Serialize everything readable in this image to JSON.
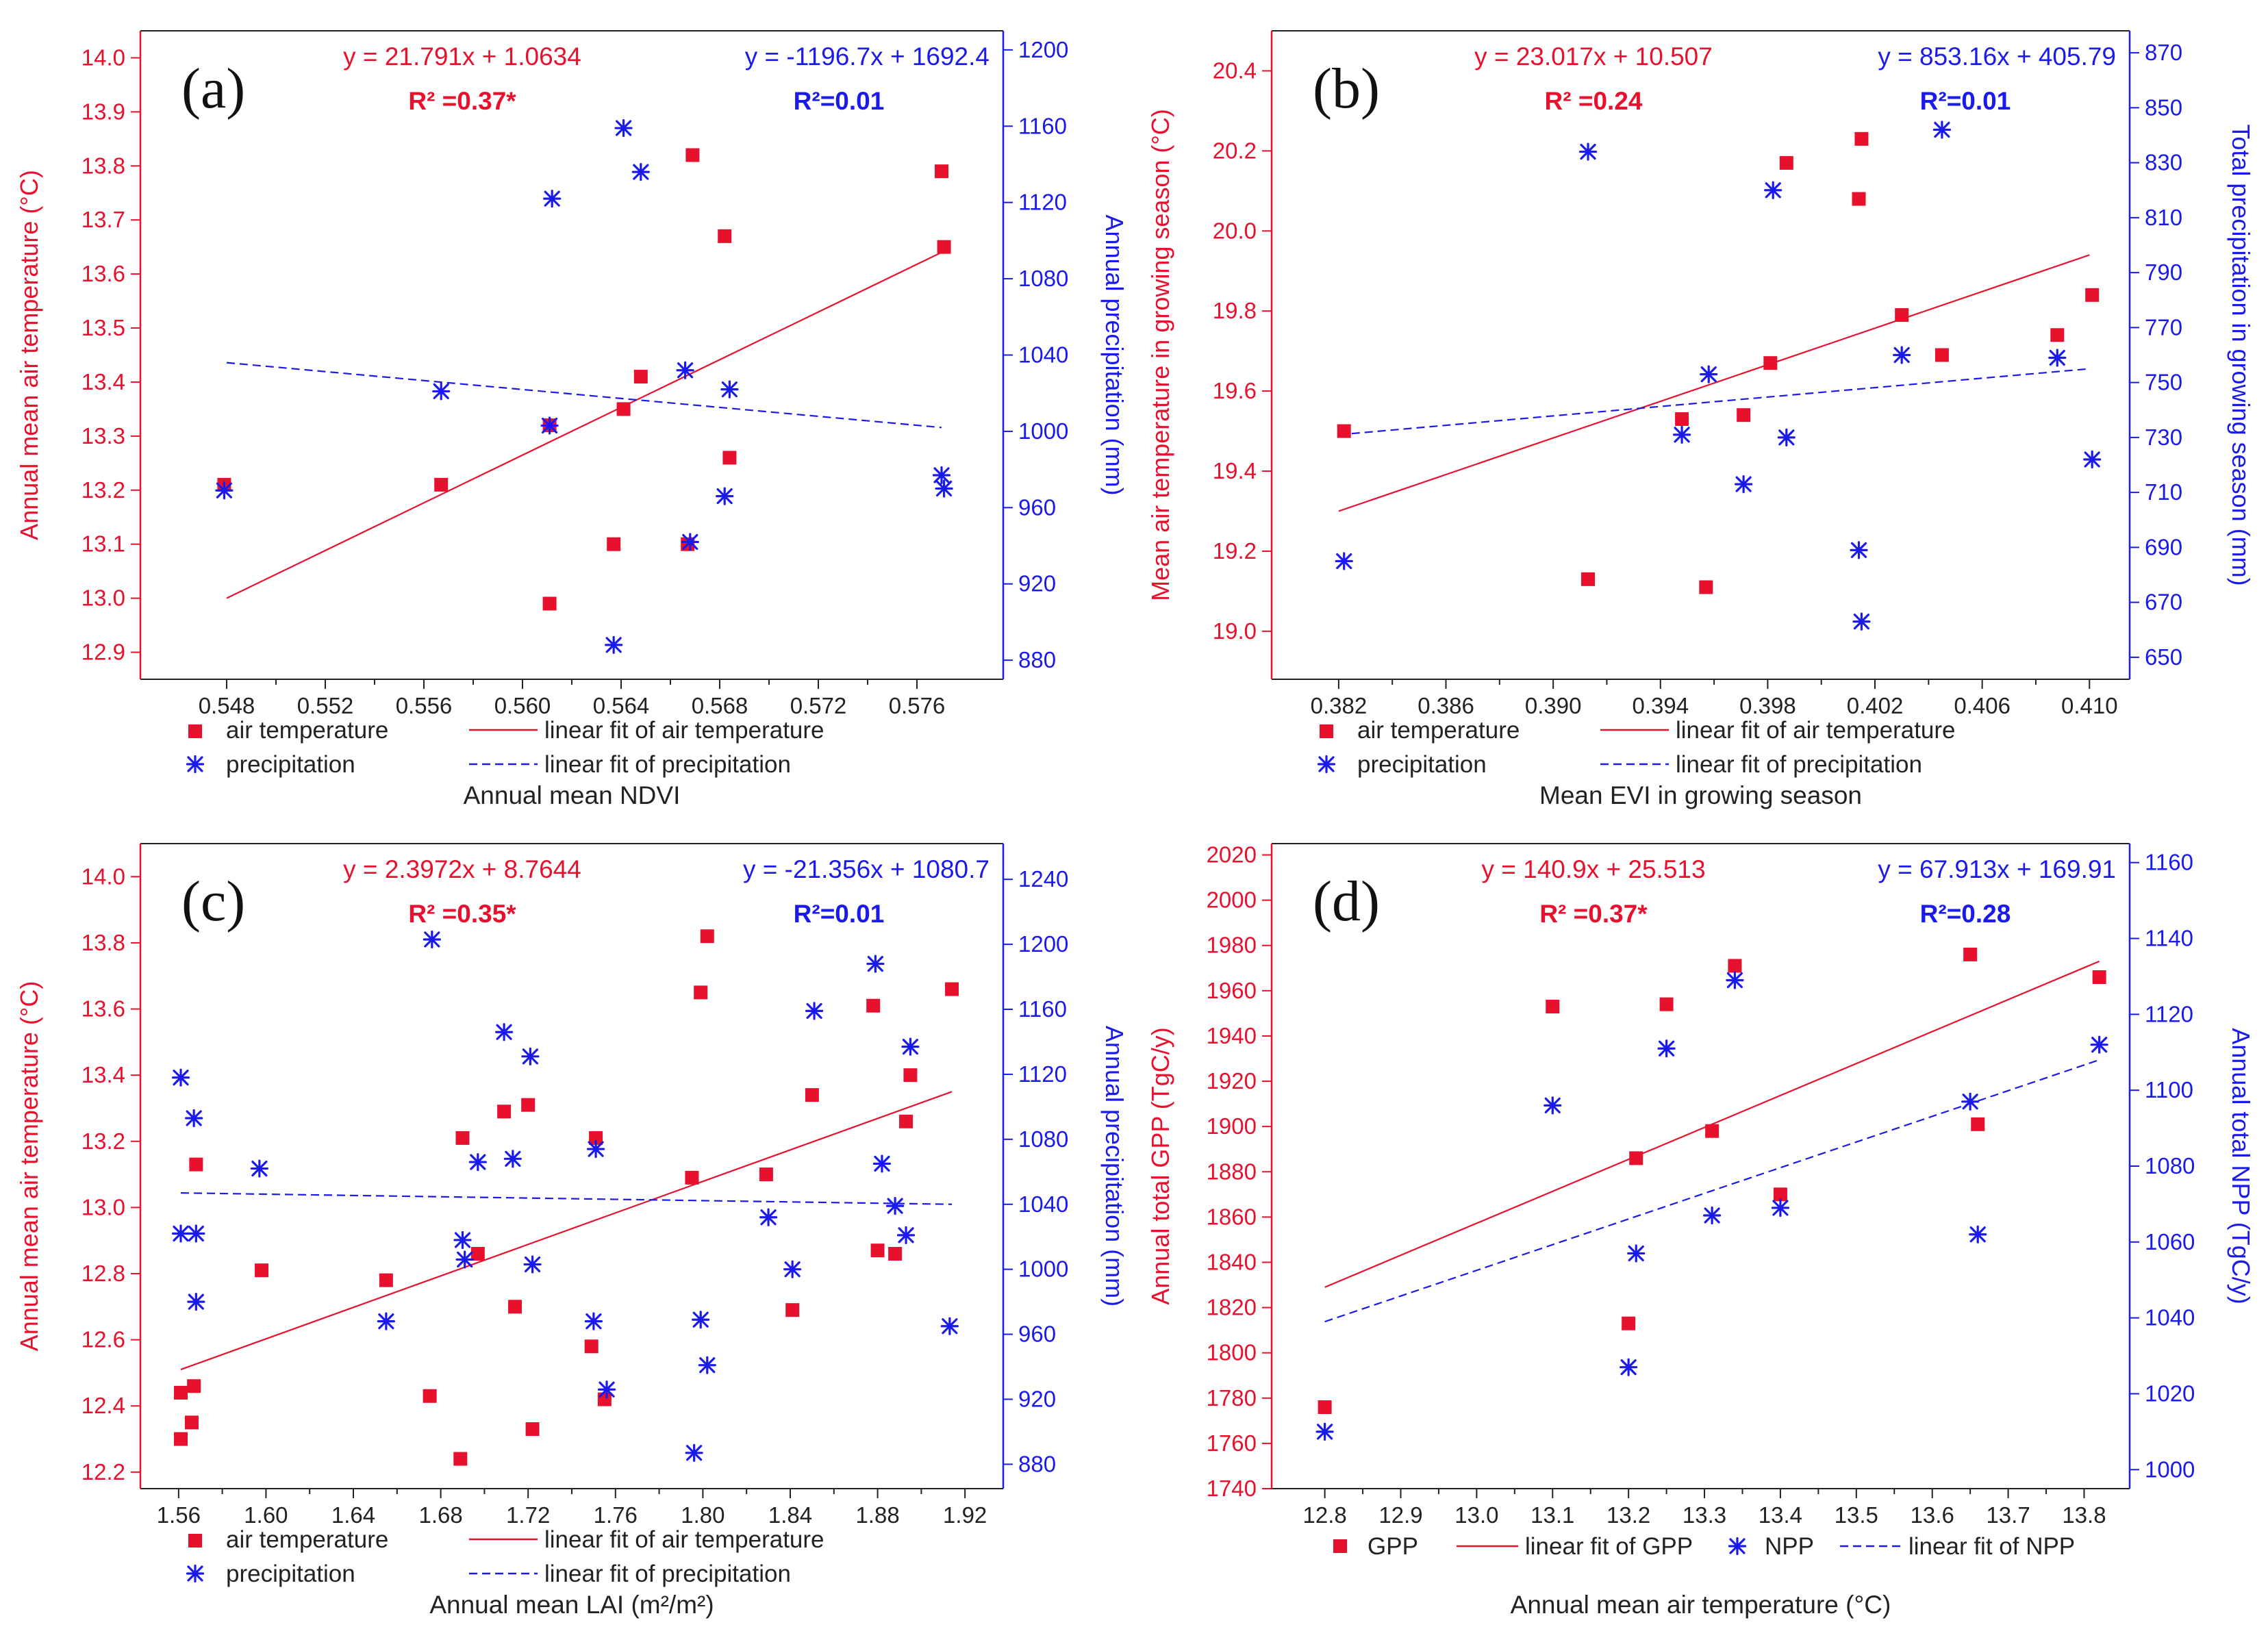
{
  "colors": {
    "red": "#e8112d",
    "blue": "#1a1aeb",
    "axis": "#222222"
  },
  "chart_data": [
    {
      "type": "scatter",
      "panel": "(a)",
      "xlabel": "Annual mean NDVI",
      "ylabel_left": "Annual mean air temperature (°C)",
      "ylabel_right": "Annual precipitation (mm)",
      "xlim": [
        0.5445,
        0.5795
      ],
      "xticks": [
        0.548,
        0.552,
        0.556,
        0.56,
        0.564,
        0.568,
        0.572,
        0.576
      ],
      "xtick_labels": [
        "0.548",
        "0.552",
        "0.556",
        "0.560",
        "0.564",
        "0.568",
        "0.572",
        "0.576"
      ],
      "ylim_left": [
        12.85,
        14.05
      ],
      "yticks_left": [
        12.9,
        13.0,
        13.1,
        13.2,
        13.3,
        13.4,
        13.5,
        13.6,
        13.7,
        13.8,
        13.9,
        14.0
      ],
      "ytick_labels_left": [
        "12.9",
        "13.0",
        "13.1",
        "13.2",
        "13.3",
        "13.4",
        "13.5",
        "13.6",
        "13.7",
        "13.8",
        "13.9",
        "14.0"
      ],
      "ylim_right": [
        870,
        1210
      ],
      "yticks_right": [
        880,
        920,
        960,
        1000,
        1040,
        1080,
        1120,
        1160,
        1200
      ],
      "ytick_labels_right": [
        "880",
        "920",
        "960",
        "1000",
        "1040",
        "1080",
        "1120",
        "1160",
        "1200"
      ],
      "eq_left": "y = 21.791x + 1.0634",
      "r2_left": "R² =0.37*",
      "eq_right": "y = -1196.7x + 1692.4",
      "r2_right": "R²=0.01",
      "legend": [
        "air temperature",
        "linear fit of air temperature",
        "precipitation",
        "linear fit of precipitation"
      ],
      "series": [
        {
          "name": "air temperature",
          "axis": "left",
          "marker": "square",
          "x": [
            0.5479,
            0.5567,
            0.5611,
            0.5611,
            0.5637,
            0.5641,
            0.5648,
            0.5667,
            0.5669,
            0.5682,
            0.5684,
            0.577,
            0.5771
          ],
          "y": [
            13.21,
            13.21,
            13.32,
            12.99,
            13.1,
            13.35,
            13.41,
            13.1,
            13.82,
            13.67,
            13.26,
            13.79,
            13.65
          ]
        },
        {
          "name": "precipitation",
          "axis": "right",
          "marker": "asterisk",
          "x": [
            0.5479,
            0.5567,
            0.5611,
            0.5612,
            0.5637,
            0.5641,
            0.5648,
            0.5666,
            0.5668,
            0.5682,
            0.5684,
            0.577,
            0.5771
          ],
          "y": [
            969,
            1021,
            1003,
            1122,
            888,
            1159,
            1136,
            1032,
            942,
            966,
            1022,
            977,
            970
          ]
        }
      ],
      "fits": [
        {
          "name": "linear fit of air temperature",
          "axis": "left",
          "x": [
            0.548,
            0.577
          ],
          "y": [
            13.0,
            13.64
          ],
          "style": "solid"
        },
        {
          "name": "linear fit of precipitation",
          "axis": "right",
          "x": [
            0.548,
            0.577
          ],
          "y": [
            1036,
            1002
          ],
          "style": "dashed"
        }
      ]
    },
    {
      "type": "scatter",
      "panel": "(b)",
      "xlabel": "Mean EVI in growing season",
      "ylabel_left": "Mean air temperature in growing season (°C)",
      "ylabel_right": "Total precipitation in growing season (mm)",
      "xlim": [
        0.3795,
        0.4115
      ],
      "xticks": [
        0.382,
        0.386,
        0.39,
        0.394,
        0.398,
        0.402,
        0.406,
        0.41
      ],
      "xtick_labels": [
        "0.382",
        "0.386",
        "0.390",
        "0.394",
        "0.398",
        "0.402",
        "0.406",
        "0.410"
      ],
      "ylim_left": [
        18.88,
        20.5
      ],
      "yticks_left": [
        19.0,
        19.2,
        19.4,
        19.6,
        19.8,
        20.0,
        20.2,
        20.4
      ],
      "ytick_labels_left": [
        "19.0",
        "19.2",
        "19.4",
        "19.6",
        "19.8",
        "20.0",
        "20.2",
        "20.4"
      ],
      "ylim_right": [
        642,
        878
      ],
      "yticks_right": [
        650,
        670,
        690,
        710,
        730,
        750,
        770,
        790,
        810,
        830,
        850,
        870
      ],
      "ytick_labels_right": [
        "650",
        "670",
        "690",
        "710",
        "730",
        "750",
        "770",
        "790",
        "810",
        "830",
        "850",
        "870"
      ],
      "eq_left": "y = 23.017x + 10.507",
      "r2_left": "R² =0.24",
      "eq_right": "y = 853.16x + 405.79",
      "r2_right": "R²=0.01",
      "legend": [
        "air temperature",
        "linear fit of air temperature",
        "precipitation",
        "linear fit of precipitation"
      ],
      "series": [
        {
          "name": "air temperature",
          "axis": "left",
          "marker": "square",
          "x": [
            0.3822,
            0.3913,
            0.3948,
            0.3957,
            0.3971,
            0.3981,
            0.3987,
            0.4014,
            0.4015,
            0.403,
            0.4045,
            0.4088,
            0.4101
          ],
          "y": [
            19.5,
            19.13,
            19.53,
            19.11,
            19.54,
            19.67,
            20.17,
            20.08,
            20.23,
            19.79,
            19.69,
            19.74,
            19.84
          ]
        },
        {
          "name": "precipitation",
          "axis": "right",
          "marker": "asterisk",
          "x": [
            0.3822,
            0.3913,
            0.3948,
            0.3958,
            0.3971,
            0.3982,
            0.3987,
            0.4014,
            0.4015,
            0.403,
            0.4045,
            0.4088,
            0.4101
          ],
          "y": [
            685,
            834,
            731,
            753,
            713,
            820,
            730,
            689,
            663,
            760,
            842,
            759,
            722
          ]
        }
      ],
      "fits": [
        {
          "name": "linear fit of air temperature",
          "axis": "left",
          "x": [
            0.382,
            0.41
          ],
          "y": [
            19.3,
            19.94
          ],
          "style": "solid"
        },
        {
          "name": "linear fit of precipitation",
          "axis": "right",
          "x": [
            0.382,
            0.41
          ],
          "y": [
            731,
            755
          ],
          "style": "dashed"
        }
      ]
    },
    {
      "type": "scatter",
      "panel": "(c)",
      "xlabel": "Annual mean LAI (m²/m²)",
      "ylabel_left": "Annual mean air temperature (°C)",
      "ylabel_right": "Annual precipitation (mm)",
      "xlim": [
        1.5425,
        1.9375
      ],
      "xticks": [
        1.56,
        1.6,
        1.64,
        1.68,
        1.72,
        1.76,
        1.8,
        1.84,
        1.88,
        1.92
      ],
      "xtick_labels": [
        "1.56",
        "1.60",
        "1.64",
        "1.68",
        "1.72",
        "1.76",
        "1.80",
        "1.84",
        "1.88",
        "1.92"
      ],
      "ylim_left": [
        12.15,
        14.1
      ],
      "yticks_left": [
        12.2,
        12.4,
        12.6,
        12.8,
        13.0,
        13.2,
        13.4,
        13.6,
        13.8,
        14.0
      ],
      "ytick_labels_left": [
        "12.2",
        "12.4",
        "12.6",
        "12.8",
        "13.0",
        "13.2",
        "13.4",
        "13.6",
        "13.8",
        "14.0"
      ],
      "ylim_right": [
        865,
        1262
      ],
      "yticks_right": [
        880,
        920,
        960,
        1000,
        1040,
        1080,
        1120,
        1160,
        1200,
        1240
      ],
      "ytick_labels_right": [
        "880",
        "920",
        "960",
        "1000",
        "1040",
        "1080",
        "1120",
        "1160",
        "1200",
        "1240"
      ],
      "eq_left": "y = 2.3972x + 8.7644",
      "r2_left": "R² =0.35*",
      "eq_right": "y = -21.356x + 1080.7",
      "r2_right": "R²=0.01",
      "legend": [
        "air temperature",
        "linear fit of air temperature",
        "precipitation",
        "linear fit of precipitation"
      ],
      "series": [
        {
          "name": "air temperature",
          "axis": "left",
          "marker": "square",
          "x": [
            1.561,
            1.561,
            1.566,
            1.567,
            1.568,
            1.598,
            1.655,
            1.675,
            1.689,
            1.69,
            1.697,
            1.709,
            1.714,
            1.72,
            1.722,
            1.749,
            1.751,
            1.755,
            1.795,
            1.799,
            1.802,
            1.829,
            1.841,
            1.85,
            1.878,
            1.88,
            1.888,
            1.893,
            1.895,
            1.914
          ],
          "y": [
            12.44,
            12.3,
            12.35,
            12.46,
            13.13,
            12.81,
            12.78,
            12.43,
            12.24,
            13.21,
            12.86,
            13.29,
            12.7,
            13.31,
            12.33,
            12.58,
            13.21,
            12.42,
            13.09,
            13.65,
            13.82,
            13.1,
            12.69,
            13.34,
            13.61,
            12.87,
            12.86,
            13.26,
            13.4,
            13.66
          ]
        },
        {
          "name": "precipitation",
          "axis": "right",
          "marker": "asterisk",
          "x": [
            1.561,
            1.561,
            1.567,
            1.568,
            1.568,
            1.597,
            1.655,
            1.676,
            1.69,
            1.691,
            1.697,
            1.709,
            1.713,
            1.721,
            1.722,
            1.75,
            1.751,
            1.756,
            1.796,
            1.799,
            1.802,
            1.83,
            1.841,
            1.851,
            1.879,
            1.882,
            1.888,
            1.893,
            1.895,
            1.913
          ],
          "y": [
            1118,
            1022,
            1093,
            1022,
            980,
            1062,
            968,
            1203,
            1018,
            1006,
            1066,
            1146,
            1068,
            1131,
            1003,
            968,
            1074,
            926,
            887,
            969,
            941,
            1032,
            1000,
            1159,
            1188,
            1065,
            1039,
            1021,
            1137,
            965
          ]
        }
      ],
      "fits": [
        {
          "name": "linear fit of air temperature",
          "axis": "left",
          "x": [
            1.561,
            1.914
          ],
          "y": [
            12.51,
            13.35
          ],
          "style": "solid"
        },
        {
          "name": "linear fit of precipitation",
          "axis": "right",
          "x": [
            1.561,
            1.914
          ],
          "y": [
            1047,
            1040
          ],
          "style": "dashed"
        }
      ]
    },
    {
      "type": "scatter",
      "panel": "(d)",
      "xlabel": "Annual mean air temperature (°C)",
      "ylabel_left": "Annual total GPP (TgC/y)",
      "ylabel_right": "Annual total NPP (TgC/y)",
      "xlim": [
        12.73,
        13.86
      ],
      "xticks": [
        12.8,
        12.9,
        13.0,
        13.1,
        13.2,
        13.3,
        13.4,
        13.5,
        13.6,
        13.7,
        13.8
      ],
      "xtick_labels": [
        "12.8",
        "12.9",
        "13.0",
        "13.1",
        "13.2",
        "13.3",
        "13.4",
        "13.5",
        "13.6",
        "13.7",
        "13.8"
      ],
      "ylim_left": [
        1740,
        2025
      ],
      "yticks_left": [
        1740,
        1760,
        1780,
        1800,
        1820,
        1840,
        1860,
        1880,
        1900,
        1920,
        1940,
        1960,
        1980,
        2000,
        2020
      ],
      "ytick_labels_left": [
        "1740",
        "1760",
        "1780",
        "1800",
        "1820",
        "1840",
        "1860",
        "1880",
        "1900",
        "1920",
        "1940",
        "1960",
        "1980",
        "2000",
        "2020"
      ],
      "ylim_right": [
        995,
        1165
      ],
      "yticks_right": [
        1000,
        1020,
        1040,
        1060,
        1080,
        1100,
        1120,
        1140,
        1160
      ],
      "ytick_labels_right": [
        "1000",
        "1020",
        "1040",
        "1060",
        "1080",
        "1100",
        "1120",
        "1140",
        "1160"
      ],
      "eq_left": "y = 140.9x + 25.513",
      "r2_left": "R² =0.37*",
      "eq_right": "y = 67.913x + 169.91",
      "r2_right": "R²=0.28",
      "legend": [
        "GPP",
        "linear fit of GPP",
        "NPP",
        "linear fit of NPP"
      ],
      "series": [
        {
          "name": "GPP",
          "axis": "left",
          "marker": "square",
          "x": [
            12.8,
            13.1,
            13.2,
            13.21,
            13.25,
            13.31,
            13.34,
            13.4,
            13.65,
            13.66,
            13.82
          ],
          "y": [
            1776,
            1953,
            1813,
            1886,
            1954,
            1898,
            1971,
            1870,
            1976,
            1901,
            1966
          ]
        },
        {
          "name": "NPP",
          "axis": "right",
          "marker": "asterisk",
          "x": [
            12.8,
            13.1,
            13.2,
            13.21,
            13.25,
            13.31,
            13.34,
            13.4,
            13.65,
            13.66,
            13.82
          ],
          "y": [
            1010,
            1096,
            1027,
            1057,
            1111,
            1067,
            1129,
            1069,
            1097,
            1062,
            1112
          ]
        }
      ],
      "fits": [
        {
          "name": "linear fit of GPP",
          "axis": "left",
          "x": [
            12.8,
            13.82
          ],
          "y": [
            1829,
            1973
          ],
          "style": "solid"
        },
        {
          "name": "linear fit of NPP",
          "axis": "right",
          "x": [
            12.8,
            13.82
          ],
          "y": [
            1039,
            1108
          ],
          "style": "dashed"
        }
      ]
    }
  ]
}
